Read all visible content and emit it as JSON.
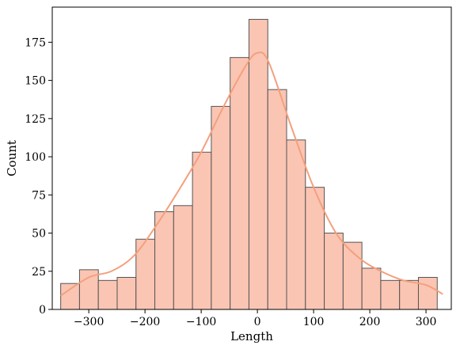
{
  "chart_data": {
    "type": "bar",
    "subtype": "histogram-with-kde",
    "title": "",
    "xlabel": "Length",
    "ylabel": "Count",
    "xlim": [
      -365,
      345
    ],
    "ylim": [
      0,
      198
    ],
    "xticks": [
      -300,
      -200,
      -100,
      0,
      100,
      200,
      300
    ],
    "xtick_labels": [
      "−300",
      "−200",
      "−100",
      "0",
      "100",
      "200",
      "300"
    ],
    "yticks": [
      0,
      25,
      50,
      75,
      100,
      125,
      150,
      175
    ],
    "ytick_labels": [
      "0",
      "25",
      "50",
      "75",
      "100",
      "125",
      "150",
      "175"
    ],
    "bins": {
      "start": -350,
      "width": 33.5,
      "counts": [
        17,
        26,
        19,
        21,
        46,
        64,
        68,
        103,
        133,
        165,
        190,
        144,
        111,
        80,
        50,
        44,
        27,
        19,
        19,
        21
      ]
    },
    "kde": {
      "x": [
        -350,
        -300,
        -260,
        -220,
        -180,
        -140,
        -100,
        -60,
        -20,
        0,
        20,
        60,
        100,
        140,
        180,
        220,
        260,
        300,
        330
      ],
      "y": [
        9,
        21,
        25,
        35,
        55,
        78,
        103,
        133,
        160,
        168,
        162,
        120,
        80,
        50,
        34,
        25,
        19,
        16,
        10
      ]
    },
    "grid": false,
    "legend": "none",
    "colors": {
      "bar_fill": "#fbc5b3",
      "bar_edge": "#555555",
      "kde_line": "#f4a07d"
    }
  }
}
